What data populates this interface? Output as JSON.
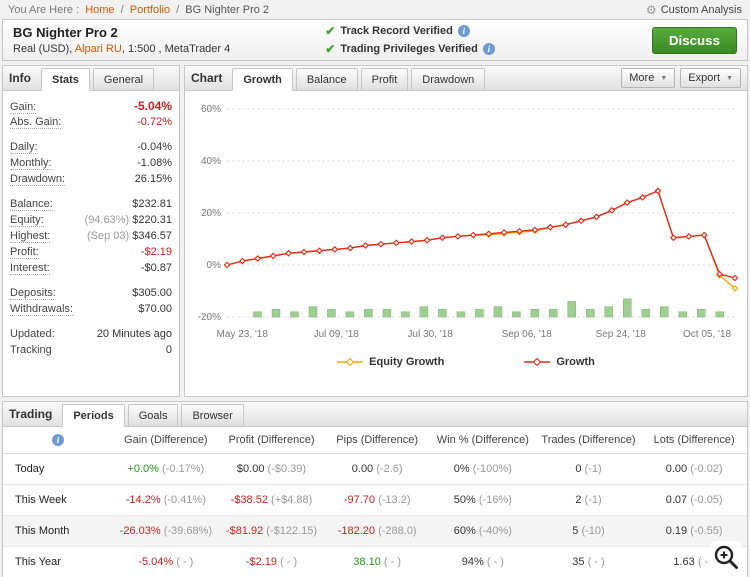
{
  "breadcrumb": {
    "prefix": "You Are Here :",
    "links": [
      "Home",
      "Portfolio"
    ],
    "separator": "/",
    "current": "BG Nighter Pro 2",
    "custom_analysis": "Custom Analysis"
  },
  "icons": {
    "check": "✔",
    "info": "i",
    "caret": "▼",
    "gear": "⚙"
  },
  "header": {
    "title": "BG Nighter Pro 2",
    "account_pre": "Real (USD), ",
    "broker": "Alpari RU",
    "account_post": ", 1:500 , MetaTrader 4",
    "verifications": [
      "Track Record Verified",
      "Trading Privileges Verified"
    ],
    "discuss_label": "Discuss"
  },
  "info_panel": {
    "title": "Info",
    "tabs": [
      {
        "label": "Stats",
        "active": true
      },
      {
        "label": "General",
        "active": false
      }
    ],
    "rows": [
      {
        "label": "Gain:",
        "value": "-5.04%",
        "color": "red",
        "big": true,
        "dotted": true
      },
      {
        "label": "Abs. Gain:",
        "value": "-0.72%",
        "color": "red",
        "dotted": true
      },
      {
        "label": "Daily:",
        "value": "-0.04%",
        "gap": true,
        "dotted": true
      },
      {
        "label": "Monthly:",
        "value": "-1.08%",
        "dotted": true
      },
      {
        "label": "Drawdown:",
        "value": "26.15%",
        "dotted": true
      },
      {
        "label": "Balance:",
        "value": "$232.81",
        "gap": true,
        "dotted": true
      },
      {
        "label": "Equity:",
        "prefix": "(94.63%) ",
        "value": "$220.31",
        "dotted": true
      },
      {
        "label": "Highest:",
        "prefix": "(Sep 03) ",
        "value": "$346.57",
        "dotted": true
      },
      {
        "label": "Profit:",
        "value": "-$2.19",
        "color": "red",
        "dotted": true
      },
      {
        "label": "Interest:",
        "value": "-$0.87",
        "dotted": true
      },
      {
        "label": "Deposits:",
        "value": "$305.00",
        "gap": true,
        "dotted": true
      },
      {
        "label": "Withdrawals:",
        "value": "$70.00",
        "dotted": true
      },
      {
        "label": "Updated:",
        "value": "20 Minutes ago",
        "gap": true,
        "dotted": false
      },
      {
        "label": "Tracking",
        "value": "0",
        "dotted": false
      }
    ]
  },
  "chart_panel": {
    "title": "Chart",
    "tabs": [
      {
        "label": "Growth",
        "active": true
      },
      {
        "label": "Balance",
        "active": false
      },
      {
        "label": "Profit",
        "active": false
      },
      {
        "label": "Drawdown",
        "active": false
      }
    ],
    "more_label": "More",
    "export_label": "Export"
  },
  "chart_data": {
    "type": "line",
    "title": "Growth",
    "ylim": [
      -20,
      60
    ],
    "y_ticks": [
      60,
      40,
      20,
      0,
      -20
    ],
    "x_labels": [
      "May 23, '18",
      "Jul 09, '18",
      "Jul 30, '18",
      "Sep 06, '18",
      "Sep 24, '18",
      "Oct 05, '18"
    ],
    "x_positions": [
      0.03,
      0.215,
      0.4,
      0.59,
      0.775,
      0.945
    ],
    "legend_position": "bottom",
    "series": [
      {
        "name": "Equity Growth",
        "color": "#f2a900",
        "values": [
          0,
          1.5,
          2.5,
          3.5,
          4.5,
          5,
          5.5,
          6,
          6.5,
          7.5,
          8,
          8.5,
          9,
          9.5,
          10.5,
          11,
          11.5,
          11.6,
          12.1,
          12.6,
          13.1,
          14.5,
          15.5,
          17,
          18.5,
          21,
          24,
          26,
          28.5,
          10.5,
          11,
          11.5,
          -4,
          -9
        ]
      },
      {
        "name": "Growth",
        "color": "#e02a1d",
        "values": [
          0,
          1.5,
          2.5,
          3.5,
          4.5,
          5,
          5.5,
          6,
          6.5,
          7.5,
          8,
          8.5,
          9,
          9.5,
          10.5,
          11,
          11.5,
          12,
          12.5,
          13,
          13.5,
          14.5,
          15.5,
          17,
          18.5,
          21,
          24,
          26,
          28.5,
          10.5,
          11,
          11.5,
          -3.5,
          -5
        ]
      }
    ],
    "bars": {
      "color": "#9fce92",
      "values": [
        2,
        3,
        2,
        4,
        3,
        2,
        3,
        3,
        2,
        4,
        3,
        2,
        3,
        4,
        2,
        3,
        3,
        6,
        3,
        4,
        7,
        3,
        4,
        2,
        3,
        2
      ]
    }
  },
  "trading_panel": {
    "title": "Trading",
    "tabs": [
      {
        "label": "Periods",
        "active": true
      },
      {
        "label": "Goals",
        "active": false
      },
      {
        "label": "Browser",
        "active": false
      }
    ],
    "columns": [
      "Gain (Difference)",
      "Profit (Difference)",
      "Pips (Difference)",
      "Win % (Difference)",
      "Trades (Difference)",
      "Lots (Difference)"
    ],
    "rows": [
      {
        "label": "Today",
        "cells": [
          {
            "v": "+0.0%",
            "d": "(-0.17%)",
            "c": "green"
          },
          {
            "v": "$0.00",
            "d": "(-$0.39)",
            "c": "default"
          },
          {
            "v": "0.00",
            "d": "(-2.6)",
            "c": "default"
          },
          {
            "v": "0%",
            "d": "(-100%)",
            "c": "default"
          },
          {
            "v": "0",
            "d": "(-1)",
            "c": "default"
          },
          {
            "v": "0.00",
            "d": "(-0.02)",
            "c": "default"
          }
        ]
      },
      {
        "label": "This Week",
        "cells": [
          {
            "v": "-14.2%",
            "d": "(-0.41%)",
            "c": "red"
          },
          {
            "v": "-$38.52",
            "d": "(+$4.88)",
            "c": "red"
          },
          {
            "v": "-97.70",
            "d": "(-13.2)",
            "c": "red"
          },
          {
            "v": "50%",
            "d": "(-16%)",
            "c": "default"
          },
          {
            "v": "2",
            "d": "(-1)",
            "c": "default"
          },
          {
            "v": "0.07",
            "d": "(-0.05)",
            "c": "default"
          }
        ]
      },
      {
        "label": "This Month",
        "cells": [
          {
            "v": "-26.03%",
            "d": "(-39.68%)",
            "c": "red"
          },
          {
            "v": "-$81.92",
            "d": "(-$122.15)",
            "c": "red"
          },
          {
            "v": "-182.20",
            "d": "(-288.0)",
            "c": "red"
          },
          {
            "v": "60%",
            "d": "(-40%)",
            "c": "default"
          },
          {
            "v": "5",
            "d": "(-10)",
            "c": "default"
          },
          {
            "v": "0.19",
            "d": "(-0.55)",
            "c": "default"
          }
        ]
      },
      {
        "label": "This Year",
        "cells": [
          {
            "v": "-5.04%",
            "d": "( - )",
            "c": "red"
          },
          {
            "v": "-$2.19",
            "d": "( - )",
            "c": "red"
          },
          {
            "v": "38.10",
            "d": "( - )",
            "c": "green"
          },
          {
            "v": "94%",
            "d": "( - )",
            "c": "default"
          },
          {
            "v": "35",
            "d": "( - )",
            "c": "default"
          },
          {
            "v": "1.63",
            "d": "( - )",
            "c": "default"
          }
        ]
      }
    ]
  },
  "colors": {
    "red": "#cc1f1a",
    "green": "#1f9c13",
    "muted": "#999999",
    "link": "#d25a00"
  }
}
